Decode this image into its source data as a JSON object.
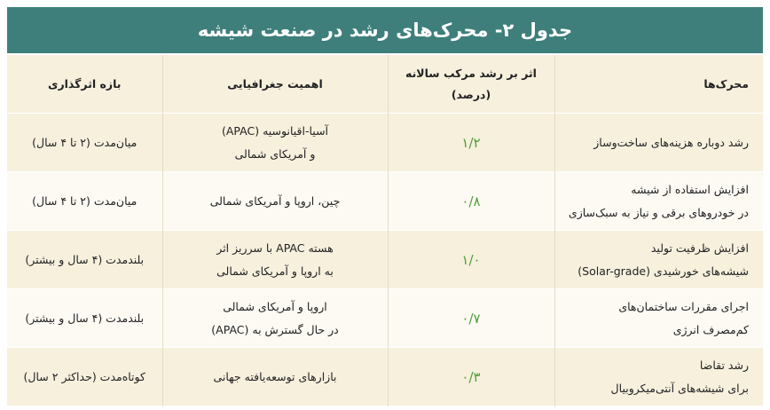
{
  "title": "جدول ۲- محرک‌های رشد در صنعت شیشه",
  "table": {
    "header": [
      [
        "محرک‌ها"
      ],
      [
        "اثر بر رشد مرکب سالانه",
        "(درصد)"
      ],
      [
        "اهمیت جغرافیایی"
      ],
      [
        "بازه اثرگذاری"
      ]
    ],
    "rows": [
      [
        [
          "رشد دوباره هزینه‌های ساخت‌وساز"
        ],
        [
          "۱/۲"
        ],
        [
          "آسیا-اقیانوسیه (APAC)",
          "و آمریکای شمالی"
        ],
        [
          "میان‌مدت (۲ تا ۴ سال)"
        ]
      ],
      [
        [
          "افزایش استفاده از شیشه",
          "در خودروهای برقی و نیاز به سبک‌سازی"
        ],
        [
          "۰/۸"
        ],
        [
          "چین، اروپا و آمریکای شمالی"
        ],
        [
          "میان‌مدت (۲ تا ۴ سال)"
        ]
      ],
      [
        [
          "افزایش ظرفیت تولید",
          "شیشه‌های خورشیدی (Solar-grade)"
        ],
        [
          "۱/۰"
        ],
        [
          "هسته APAC با سرریز اثر",
          "به اروپا و آمریکای شمالی"
        ],
        [
          "بلندمدت (۴ سال و بیشتر)"
        ]
      ],
      [
        [
          "اجرای مقررات ساختمان‌های",
          "کم‌مصرف انرژی"
        ],
        [
          "۰/۷"
        ],
        [
          "اروپا و آمریکای شمالی",
          "در حال گسترش به (APAC)"
        ],
        [
          "بلندمدت (۴ سال و بیشتر)"
        ]
      ],
      [
        [
          "رشد تقاضا",
          "برای شیشه‌های آنتی‌میکروبیال"
        ],
        [
          "۰/۳"
        ],
        [
          "بازارهای توسعه‌یافته جهانی"
        ],
        [
          "کوتاه‌مدت (حداکثر ۲ سال)"
        ]
      ]
    ]
  }
}
